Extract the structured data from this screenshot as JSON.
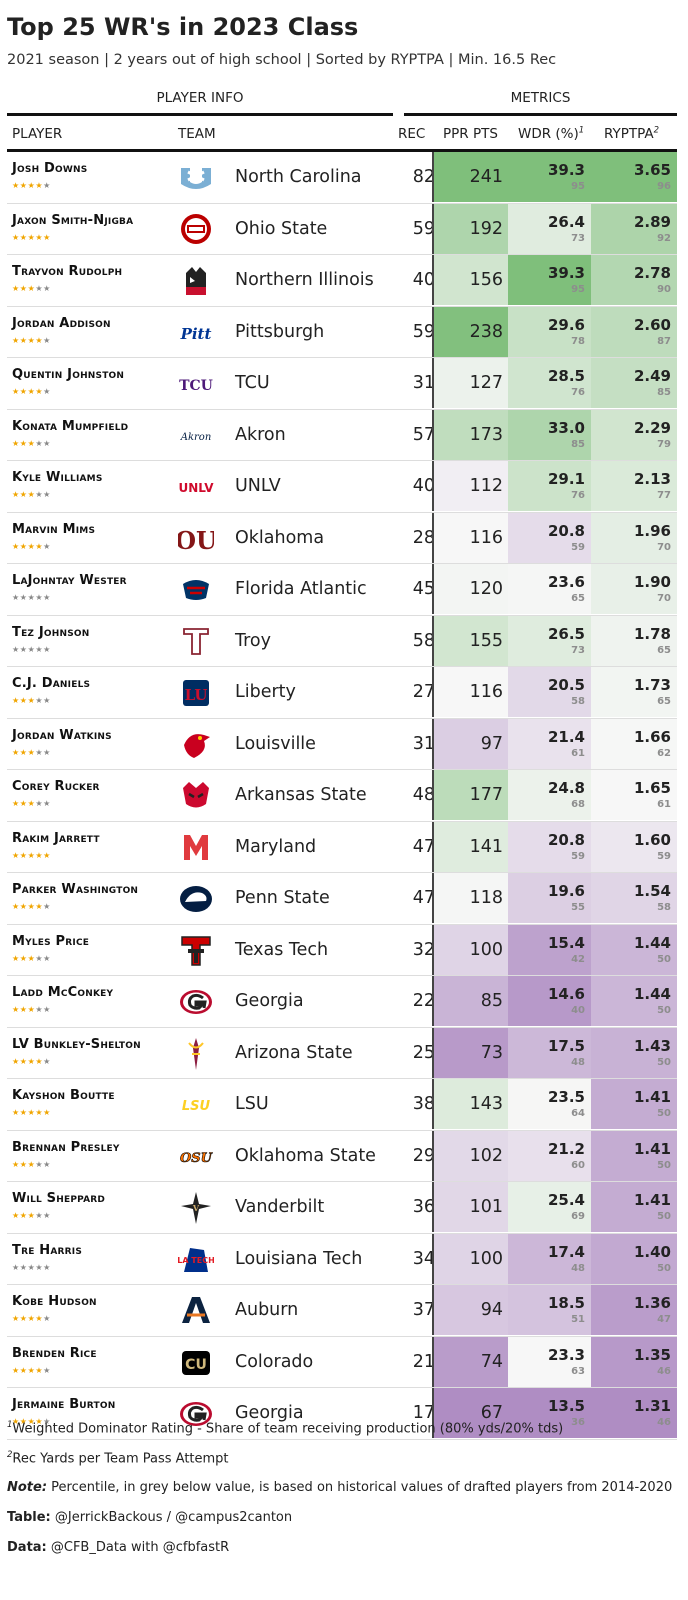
{
  "title": "Top 25 WR's in 2023 Class",
  "subtitle": "2021 season | 2 years out of high school | Sorted by RYPTPA | Min. 16.5 Rec",
  "spanners": {
    "info": "PLAYER INFO",
    "metrics": "METRICS"
  },
  "columns": {
    "player": "PLAYER",
    "team": "TEAM",
    "rec": "REC",
    "ppr": "PPR PTS",
    "wdr": "WDR (%)",
    "wdr_sup": "1",
    "ryptpa": "RYPTPA",
    "ryptpa_sup": "2"
  },
  "colors": {
    "green": "#7fbf7b",
    "purple": "#af8dc3",
    "star_on": "#f0a500",
    "star_off": "#888888"
  },
  "chart_data": {
    "type": "table",
    "title": "Top 25 WR's in 2023 Class",
    "columns": [
      "PLAYER",
      "TEAM",
      "REC",
      "PPR PTS",
      "WDR (%)",
      "RYPTPA"
    ],
    "rows": [
      {
        "player": "Josh Downs",
        "stars": 4,
        "team": "North Carolina",
        "logo": "unc-logo-icon",
        "rec": 82,
        "ppr": 241,
        "wdr": "39.3",
        "wdr_pct": 95,
        "ryptpa": "3.65",
        "ryptpa_pct": 96
      },
      {
        "player": "Jaxon Smith-Njigba",
        "stars": 5,
        "team": "Ohio State",
        "logo": "ohio-state-logo-icon",
        "rec": 59,
        "ppr": 192,
        "wdr": "26.4",
        "wdr_pct": 73,
        "ryptpa": "2.89",
        "ryptpa_pct": 92
      },
      {
        "player": "Trayvon Rudolph",
        "stars": 3,
        "team": "Northern Illinois",
        "logo": "niu-logo-icon",
        "rec": 40,
        "ppr": 156,
        "wdr": "39.3",
        "wdr_pct": 95,
        "ryptpa": "2.78",
        "ryptpa_pct": 90
      },
      {
        "player": "Jordan Addison",
        "stars": 4,
        "team": "Pittsburgh",
        "logo": "pitt-logo-icon",
        "rec": 59,
        "ppr": 238,
        "wdr": "29.6",
        "wdr_pct": 78,
        "ryptpa": "2.60",
        "ryptpa_pct": 87
      },
      {
        "player": "Quentin Johnston",
        "stars": 4,
        "team": "TCU",
        "logo": "tcu-logo-icon",
        "rec": 31,
        "ppr": 127,
        "wdr": "28.5",
        "wdr_pct": 76,
        "ryptpa": "2.49",
        "ryptpa_pct": 85
      },
      {
        "player": "Konata Mumpfield",
        "stars": 3,
        "team": "Akron",
        "logo": "akron-logo-icon",
        "rec": 57,
        "ppr": 173,
        "wdr": "33.0",
        "wdr_pct": 85,
        "ryptpa": "2.29",
        "ryptpa_pct": 79
      },
      {
        "player": "Kyle Williams",
        "stars": 3,
        "team": "UNLV",
        "logo": "unlv-logo-icon",
        "rec": 40,
        "ppr": 112,
        "wdr": "29.1",
        "wdr_pct": 76,
        "ryptpa": "2.13",
        "ryptpa_pct": 77
      },
      {
        "player": "Marvin Mims",
        "stars": 4,
        "team": "Oklahoma",
        "logo": "oklahoma-logo-icon",
        "rec": 28,
        "ppr": 116,
        "wdr": "20.8",
        "wdr_pct": 59,
        "ryptpa": "1.96",
        "ryptpa_pct": 70
      },
      {
        "player": "LaJohntay Wester",
        "stars": 0,
        "team": "Florida Atlantic",
        "logo": "fau-logo-icon",
        "rec": 45,
        "ppr": 120,
        "wdr": "23.6",
        "wdr_pct": 65,
        "ryptpa": "1.90",
        "ryptpa_pct": 70
      },
      {
        "player": "Tez Johnson",
        "stars": 0,
        "team": "Troy",
        "logo": "troy-logo-icon",
        "rec": 58,
        "ppr": 155,
        "wdr": "26.5",
        "wdr_pct": 73,
        "ryptpa": "1.78",
        "ryptpa_pct": 65
      },
      {
        "player": "C.J. Daniels",
        "stars": 3,
        "team": "Liberty",
        "logo": "liberty-logo-icon",
        "rec": 27,
        "ppr": 116,
        "wdr": "20.5",
        "wdr_pct": 58,
        "ryptpa": "1.73",
        "ryptpa_pct": 65
      },
      {
        "player": "Jordan Watkins",
        "stars": 3,
        "team": "Louisville",
        "logo": "louisville-logo-icon",
        "rec": 31,
        "ppr": 97,
        "wdr": "21.4",
        "wdr_pct": 61,
        "ryptpa": "1.66",
        "ryptpa_pct": 62
      },
      {
        "player": "Corey Rucker",
        "stars": 3,
        "team": "Arkansas State",
        "logo": "arkansas-state-logo-icon",
        "rec": 48,
        "ppr": 177,
        "wdr": "24.8",
        "wdr_pct": 68,
        "ryptpa": "1.65",
        "ryptpa_pct": 61
      },
      {
        "player": "Rakim Jarrett",
        "stars": 5,
        "team": "Maryland",
        "logo": "maryland-logo-icon",
        "rec": 47,
        "ppr": 141,
        "wdr": "20.8",
        "wdr_pct": 59,
        "ryptpa": "1.60",
        "ryptpa_pct": 59
      },
      {
        "player": "Parker Washington",
        "stars": 4,
        "team": "Penn State",
        "logo": "penn-state-logo-icon",
        "rec": 47,
        "ppr": 118,
        "wdr": "19.6",
        "wdr_pct": 55,
        "ryptpa": "1.54",
        "ryptpa_pct": 58
      },
      {
        "player": "Myles Price",
        "stars": 3,
        "team": "Texas Tech",
        "logo": "texas-tech-logo-icon",
        "rec": 32,
        "ppr": 100,
        "wdr": "15.4",
        "wdr_pct": 42,
        "ryptpa": "1.44",
        "ryptpa_pct": 50
      },
      {
        "player": "Ladd McConkey",
        "stars": 3,
        "team": "Georgia",
        "logo": "georgia-logo-icon",
        "rec": 22,
        "ppr": 85,
        "wdr": "14.6",
        "wdr_pct": 40,
        "ryptpa": "1.44",
        "ryptpa_pct": 50
      },
      {
        "player": "LV Bunkley-Shelton",
        "stars": 4,
        "team": "Arizona State",
        "logo": "arizona-state-logo-icon",
        "rec": 25,
        "ppr": 73,
        "wdr": "17.5",
        "wdr_pct": 48,
        "ryptpa": "1.43",
        "ryptpa_pct": 50
      },
      {
        "player": "Kayshon Boutte",
        "stars": 5,
        "team": "LSU",
        "logo": "lsu-logo-icon",
        "rec": 38,
        "ppr": 143,
        "wdr": "23.5",
        "wdr_pct": 64,
        "ryptpa": "1.41",
        "ryptpa_pct": 50
      },
      {
        "player": "Brennan Presley",
        "stars": 3,
        "team": "Oklahoma State",
        "logo": "oklahoma-state-logo-icon",
        "rec": 29,
        "ppr": 102,
        "wdr": "21.2",
        "wdr_pct": 60,
        "ryptpa": "1.41",
        "ryptpa_pct": 50
      },
      {
        "player": "Will Sheppard",
        "stars": 3,
        "team": "Vanderbilt",
        "logo": "vanderbilt-logo-icon",
        "rec": 36,
        "ppr": 101,
        "wdr": "25.4",
        "wdr_pct": 69,
        "ryptpa": "1.41",
        "ryptpa_pct": 50
      },
      {
        "player": "Tre Harris",
        "stars": 0,
        "team": "Louisiana Tech",
        "logo": "louisiana-tech-logo-icon",
        "rec": 34,
        "ppr": 100,
        "wdr": "17.4",
        "wdr_pct": 48,
        "ryptpa": "1.40",
        "ryptpa_pct": 50
      },
      {
        "player": "Kobe Hudson",
        "stars": 4,
        "team": "Auburn",
        "logo": "auburn-logo-icon",
        "rec": 37,
        "ppr": 94,
        "wdr": "18.5",
        "wdr_pct": 51,
        "ryptpa": "1.36",
        "ryptpa_pct": 47
      },
      {
        "player": "Brenden Rice",
        "stars": 4,
        "team": "Colorado",
        "logo": "colorado-logo-icon",
        "rec": 21,
        "ppr": 74,
        "wdr": "23.3",
        "wdr_pct": 63,
        "ryptpa": "1.35",
        "ryptpa_pct": 46
      },
      {
        "player": "Jermaine Burton",
        "stars": 4,
        "team": "Georgia",
        "logo": "georgia-logo-icon",
        "rec": 17,
        "ppr": 67,
        "wdr": "13.5",
        "wdr_pct": 36,
        "ryptpa": "1.31",
        "ryptpa_pct": 46
      }
    ]
  },
  "footnotes": {
    "fn1_mark": "1",
    "fn1": "Weighted Dominator Rating - Share of team receiving production (80% yds/20% tds)",
    "fn2_mark": "2",
    "fn2": "Rec Yards per Team Pass Attempt",
    "note_label": "Note:",
    "note": " Percentile, in grey below value, is based on historical values of drafted players from 2014-2020",
    "table_label": "Table:",
    "table": " @JerrickBackous / @campus2canton",
    "data_label": "Data:",
    "data": " @CFB_Data with @cfbfastR"
  }
}
